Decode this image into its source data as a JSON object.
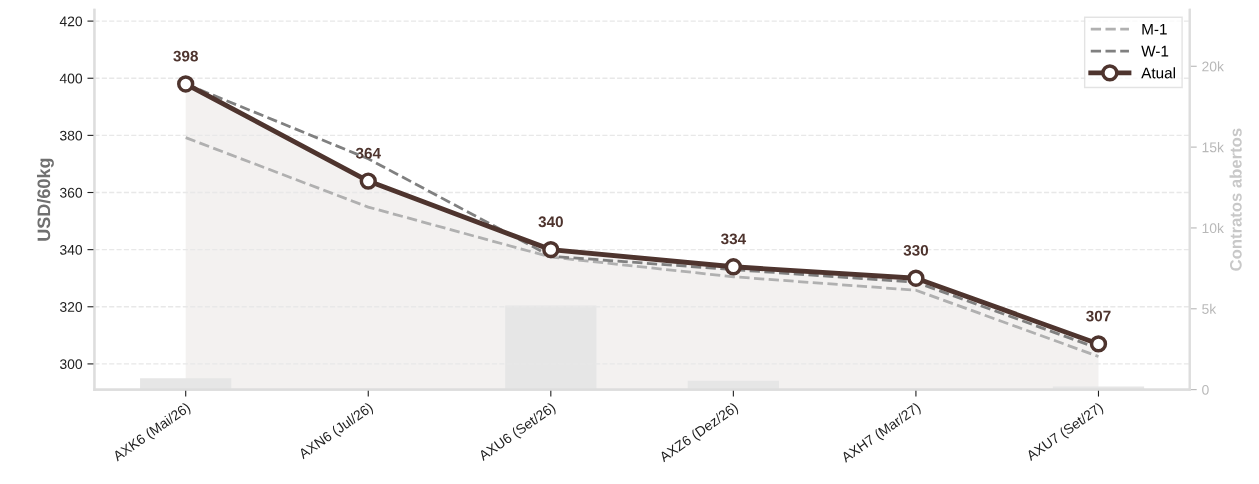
{
  "chart_data": {
    "type": "line",
    "categories": [
      "AXK6 (Mai/26)",
      "AXN6 (Jul/26)",
      "AXU6 (Set/26)",
      "AXZ6 (Dez/26)",
      "AXH7 (Mar/27)",
      "AXU7 (Set/27)"
    ],
    "ylabel": "USD/60kg",
    "y2label": "Contratos abertos",
    "ylim": [
      291,
      424
    ],
    "yticks": [
      300,
      320,
      340,
      360,
      380,
      400,
      420
    ],
    "y2lim": [
      0,
      23500
    ],
    "y2ticks": [
      0,
      {
        "value": 5000,
        "label": "5k"
      },
      {
        "value": 10000,
        "label": "10k"
      },
      {
        "value": 15000,
        "label": "15k"
      },
      {
        "value": 20000,
        "label": "20k"
      }
    ],
    "grid": "y",
    "legend": "top right",
    "series": [
      {
        "type": "bar",
        "axis": "y2",
        "color": "#e6e6e6",
        "values": [
          700,
          0,
          5200,
          550,
          0,
          200
        ]
      },
      {
        "name": "M-1",
        "line_style": "dashed",
        "color": "#b0b0b0",
        "values": [
          379.2,
          354.9,
          337.4,
          330.5,
          325.8,
          302.6
        ]
      },
      {
        "name": "W-1",
        "line_style": "dashed",
        "color": "#808080",
        "values": [
          398,
          371.8,
          337.7,
          333,
          328.6,
          305.4
        ]
      },
      {
        "name": "Atual",
        "type": "area",
        "line_style": "solid",
        "marker": "circle",
        "color": "#4e342e",
        "values": [
          398,
          364,
          340,
          334,
          330,
          307
        ],
        "value_labels": [
          "398",
          "364",
          "340",
          "334",
          "330",
          "307"
        ]
      }
    ]
  }
}
